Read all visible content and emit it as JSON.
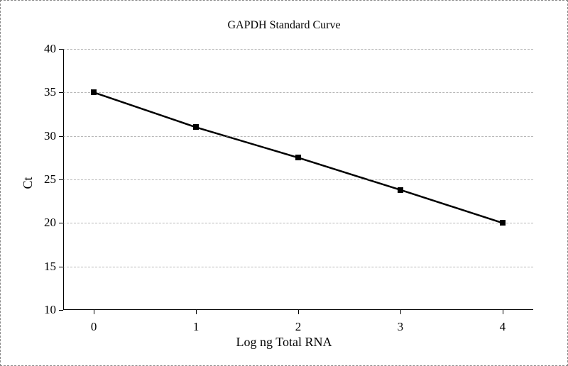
{
  "chart": {
    "type": "line",
    "title": "GAPDH Standard Curve",
    "title_fontsize": 16,
    "xlabel": "Log ng Total RNA",
    "ylabel": "Ct",
    "label_fontsize": 18,
    "tick_fontsize": 17,
    "x_values": [
      0,
      1,
      2,
      3,
      4
    ],
    "y_values": [
      35,
      31,
      27.5,
      23.8,
      20
    ],
    "xlim": [
      -0.3,
      4.3
    ],
    "ylim": [
      10,
      40
    ],
    "yticks": [
      10,
      15,
      20,
      25,
      30,
      35,
      40
    ],
    "xticks": [
      0,
      1,
      2,
      3,
      4
    ],
    "line_color": "#000000",
    "line_width": 2.5,
    "marker_style": "square",
    "marker_size": 8,
    "marker_color": "#000000",
    "background_color": "#ffffff",
    "grid_color": "#888888",
    "grid_dash": "4,4",
    "grid_axis": "y",
    "axis_color": "#000000",
    "font_family": "SimSun"
  }
}
